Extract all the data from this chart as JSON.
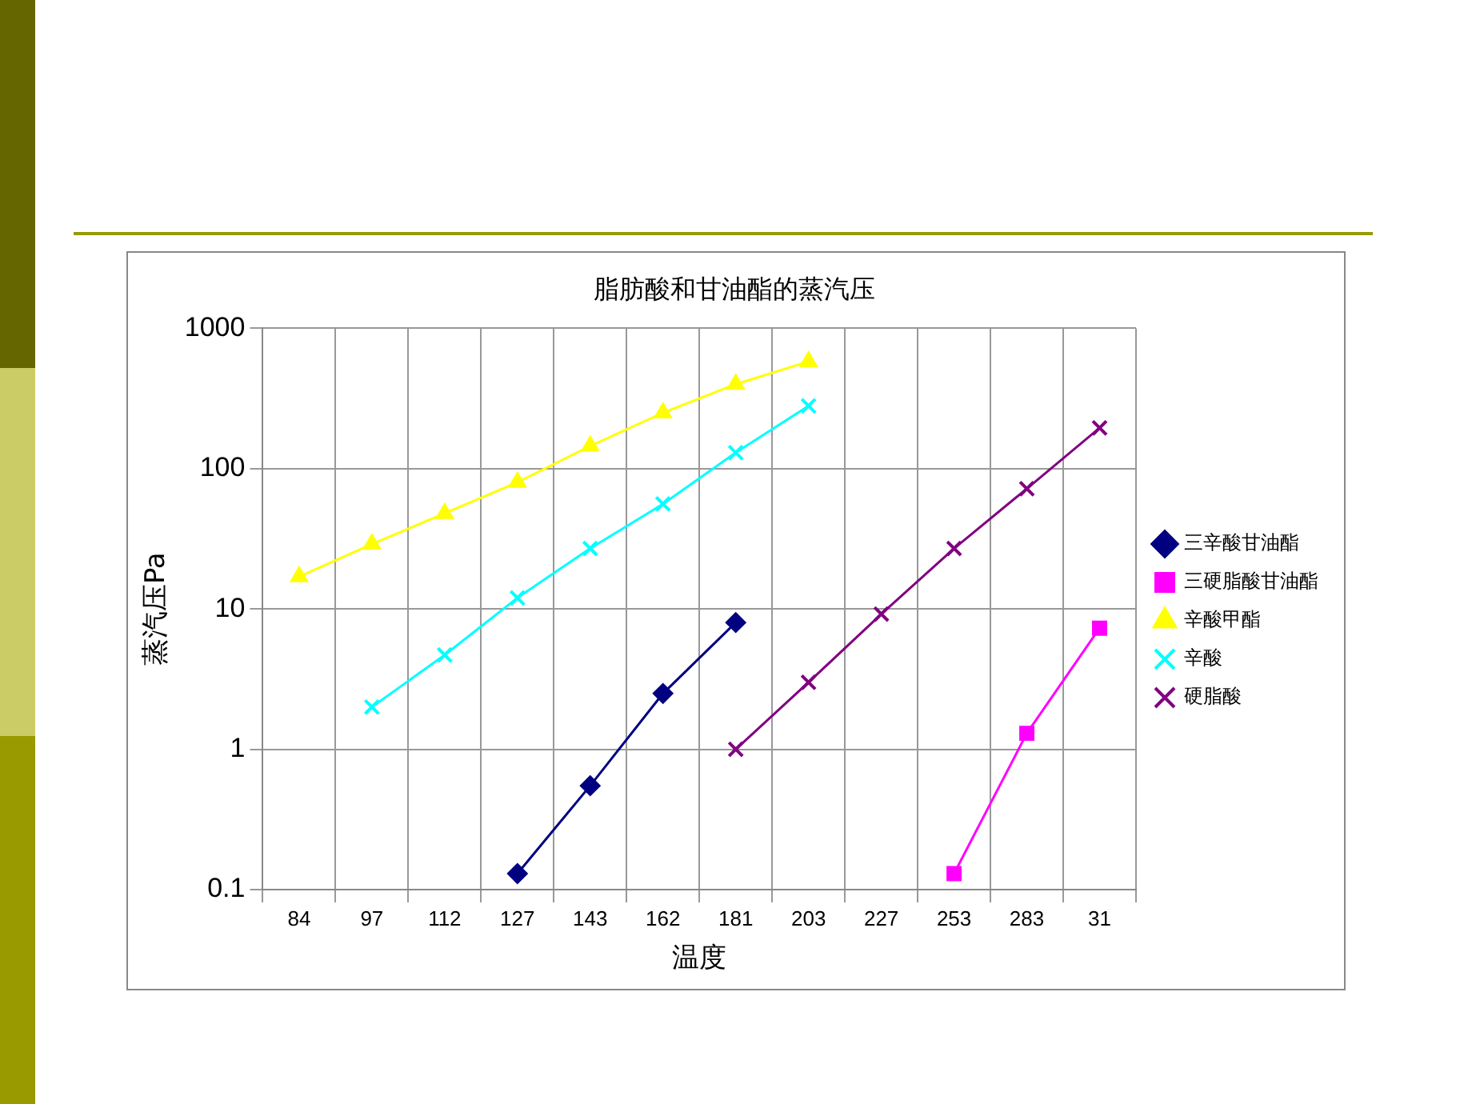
{
  "chart_data": {
    "type": "line",
    "title": "脂肪酸和甘油酯的蒸汽压",
    "xlabel": "温度",
    "ylabel": "蒸汽压Pa",
    "categories": [
      "84",
      "97",
      "112",
      "127",
      "143",
      "162",
      "181",
      "203",
      "227",
      "253",
      "283",
      "31"
    ],
    "log": "y",
    "ylim": [
      0.1,
      1000
    ],
    "yticks": [
      {
        "value": 0.1,
        "label": "0.1"
      },
      1,
      10,
      100,
      1000
    ],
    "grid": true,
    "legend": "right",
    "series": [
      {
        "name": "三辛酸甘油酯",
        "color": "#000080",
        "marker": "diamond",
        "values": [
          null,
          null,
          null,
          0.13,
          0.55,
          2.5,
          8,
          null,
          null,
          null,
          null,
          null
        ]
      },
      {
        "name": "三硬脂酸甘油酯",
        "color": "#ff00ff",
        "marker": "square",
        "values": [
          null,
          null,
          null,
          null,
          null,
          null,
          null,
          null,
          null,
          0.13,
          1.3,
          7.3
        ]
      },
      {
        "name": "辛酸甲酯",
        "color": "#ffff00",
        "marker": "triangle",
        "values": [
          17,
          29,
          48,
          80,
          145,
          250,
          400,
          580,
          null,
          null,
          null,
          null
        ]
      },
      {
        "name": "辛酸",
        "color": "#00ffff",
        "marker": "cross",
        "values": [
          null,
          2,
          4.7,
          12,
          27,
          56,
          130,
          280,
          null,
          null,
          null,
          null
        ]
      },
      {
        "name": "硬脂酸",
        "color": "#800080",
        "marker": "cross",
        "values": [
          null,
          null,
          null,
          null,
          null,
          null,
          1,
          3,
          9.2,
          27,
          72,
          195
        ]
      }
    ]
  }
}
